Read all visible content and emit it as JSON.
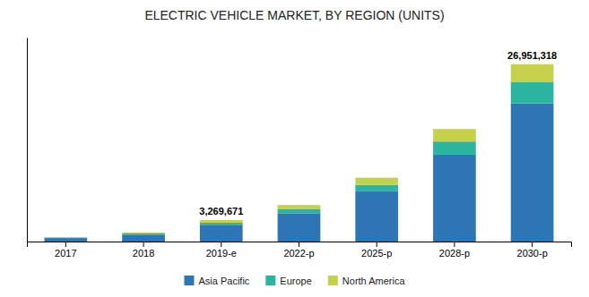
{
  "chart_data": {
    "type": "bar",
    "stacked": true,
    "title": "ELECTRIC VEHICLE MARKET, BY REGION (UNITS)",
    "categories": [
      "2017",
      "2018",
      "2019-e",
      "2022-p",
      "2025-p",
      "2028-p",
      "2030-p"
    ],
    "series": [
      {
        "name": "Asia Pacific",
        "color": "#2e75b6",
        "values": [
          530000,
          1050000,
          2450000,
          4300000,
          7700000,
          13200000,
          21000000
        ]
      },
      {
        "name": "Europe",
        "color": "#2ab5a0",
        "values": [
          80000,
          200000,
          400000,
          600000,
          900000,
          2000000,
          3200000
        ]
      },
      {
        "name": "North America",
        "color": "#c5d14a",
        "values": [
          70000,
          150000,
          419671,
          650000,
          1100000,
          1900000,
          2751318
        ]
      }
    ],
    "annotations": [
      {
        "text": "3,269,671",
        "x": "2019-e",
        "y": 3269671
      },
      {
        "text": "26,951,318",
        "x": "2030-p",
        "y": 26951318
      }
    ],
    "ylim": [
      0,
      31000000
    ],
    "tick_labels": "x",
    "grid": false,
    "legend": "bottom"
  }
}
